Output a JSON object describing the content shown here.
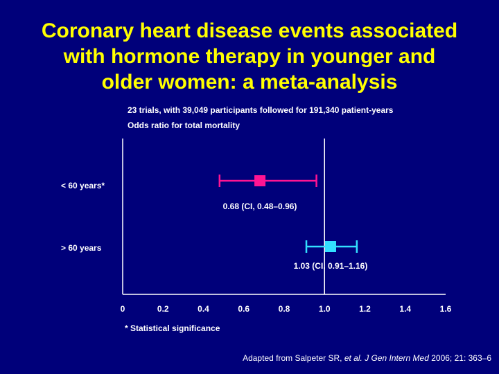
{
  "slide": {
    "title_lines": [
      "Coronary heart disease events associated",
      "with hormone therapy in younger and",
      "older women: a meta-analysis"
    ],
    "subtitle_1": "23 trials, with 39,049 participants followed for 191,340 patient-years",
    "subtitle_2": "Odds ratio for total mortality",
    "footnote": "* Statistical significance",
    "source_prefix": "Adapted from Salpeter SR, ",
    "source_etal": "et al.",
    "source_journal": "J Gen Intern Med",
    "source_suffix": " 2006; 21: 363–6"
  },
  "chart_data": {
    "type": "forest",
    "xlim": [
      0,
      1.6
    ],
    "x_ticks": [
      "0",
      "0.2",
      "0.4",
      "0.6",
      "0.8",
      "1.0",
      "1.2",
      "1.4",
      "1.6"
    ],
    "reference_line": 1.0,
    "rows": [
      {
        "label": "< 60 years*",
        "estimate": 0.68,
        "ci": [
          0.48,
          0.96
        ],
        "annotation": "0.68 (CI, 0.48–0.96)",
        "color": "#ff1493"
      },
      {
        "label": "> 60 years",
        "estimate": 1.03,
        "ci": [
          0.91,
          1.16
        ],
        "annotation": "1.03 (CI, 0.91–1.16)",
        "color": "#33e0ff"
      }
    ],
    "colors": {
      "axis": "#ffffff",
      "background": "#00007a",
      "title": "#ffff00"
    }
  }
}
